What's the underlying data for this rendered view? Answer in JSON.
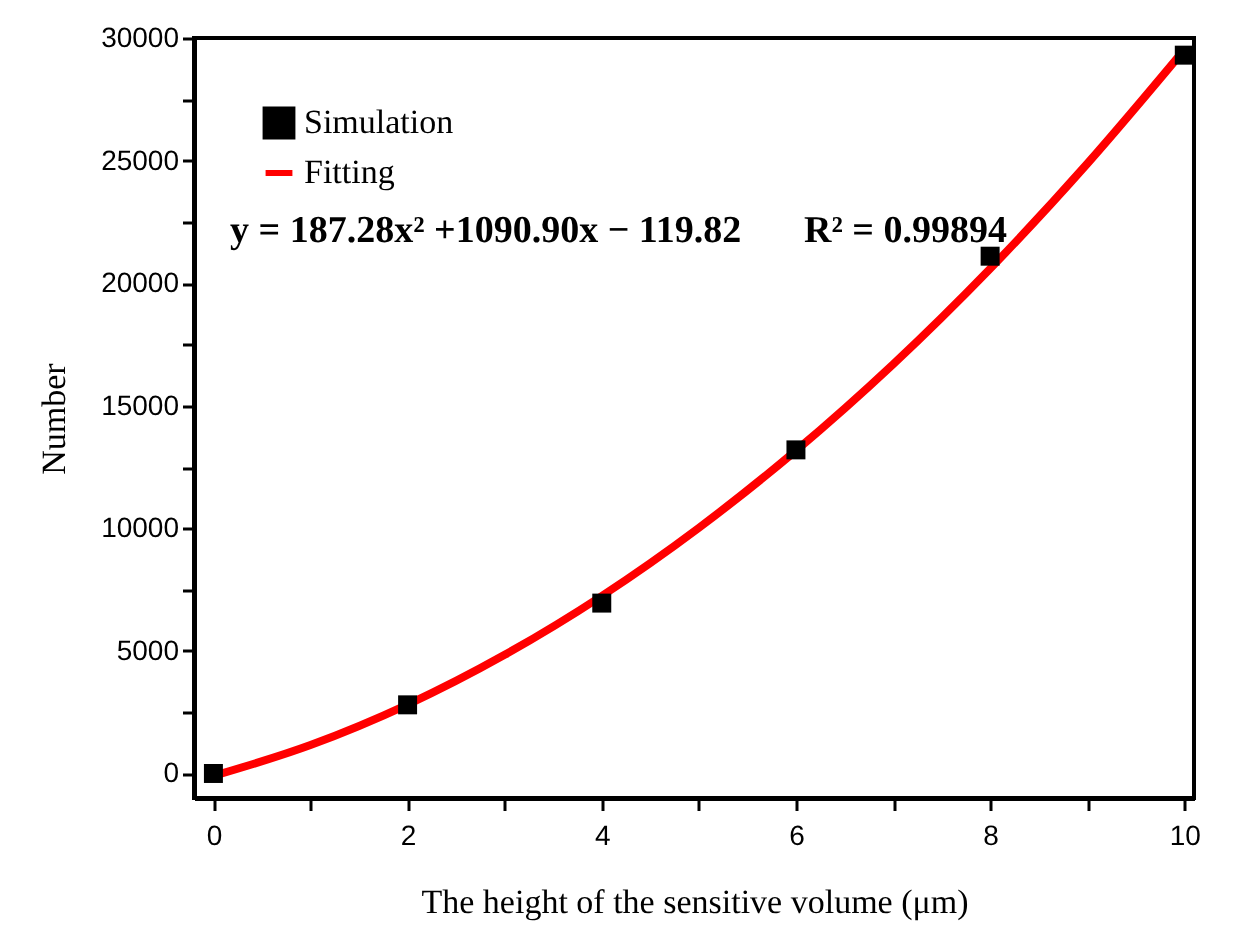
{
  "chart_data": {
    "type": "scatter",
    "xlabel": "The height of the sensitive volume (μm)",
    "ylabel": "Number",
    "xlim": [
      -0.2,
      10.1
    ],
    "ylim": [
      -1000,
      30000
    ],
    "xticks": [
      0,
      {
        "value": 1,
        "label": null
      },
      2,
      {
        "value": 3,
        "label": null
      },
      4,
      {
        "value": 5,
        "label": null
      },
      6,
      {
        "value": 7,
        "label": null
      },
      8,
      {
        "value": 9,
        "label": null
      },
      10
    ],
    "yticks": [
      0,
      {
        "value": 2500,
        "label": null
      },
      5000,
      {
        "value": 7500,
        "label": null
      },
      10000,
      {
        "value": 12500,
        "label": null
      },
      15000,
      {
        "value": 17500,
        "label": null
      },
      20000,
      {
        "value": 22500,
        "label": null
      },
      25000,
      {
        "value": 27500,
        "label": null
      },
      30000
    ],
    "legend": "top left",
    "grid": false,
    "series": [
      {
        "name": "Simulation",
        "type": "scatter",
        "marker": "square",
        "color": "#000000",
        "x": [
          0,
          2,
          4,
          6,
          8,
          10
        ],
        "values": [
          0,
          2800,
          6950,
          13200,
          21100,
          29300
        ]
      },
      {
        "name": "Fitting",
        "type": "line",
        "line_style": "solid",
        "color": "#ff0000",
        "x": [
          0,
          1,
          2,
          3,
          4,
          5,
          6,
          7,
          8,
          9,
          10
        ],
        "values": [
          -100,
          1160,
          2810,
          4840,
          7240,
          10020,
          13170,
          16690,
          20590,
          24870,
          29520
        ]
      }
    ],
    "annotations": [
      "y = 187.28x² +1090.90x − 119.82",
      "R² = 0.99894"
    ]
  }
}
